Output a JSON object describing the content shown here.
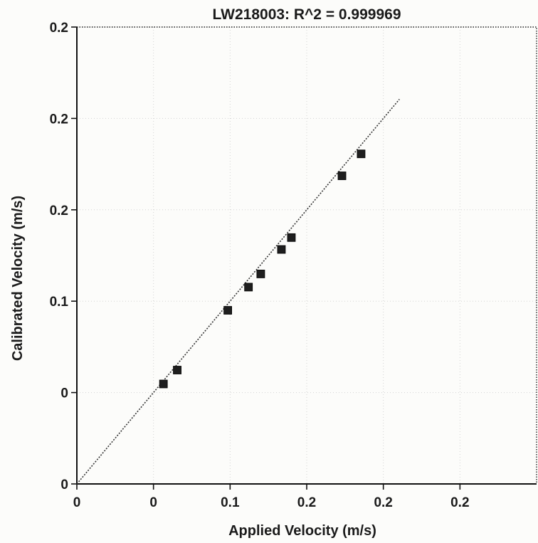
{
  "chart_data": {
    "type": "scatter",
    "title": "LW218003: R^2 = 0.999969",
    "xlabel": "Applied Velocity (m/s)",
    "ylabel": "Calibrated Velocity (m/s)",
    "xlim": [
      0,
      0.3
    ],
    "ylim": [
      0,
      0.25
    ],
    "x_ticks": [
      {
        "value": 0,
        "label": "0"
      },
      {
        "value": 0.05,
        "label": "0"
      },
      {
        "value": 0.1,
        "label": "0.1"
      },
      {
        "value": 0.15,
        "label": "0.2"
      },
      {
        "value": 0.2,
        "label": "0.2"
      },
      {
        "value": 0.25,
        "label": "0.2"
      }
    ],
    "y_ticks": [
      {
        "value": 0,
        "label": "0"
      },
      {
        "value": 0.05,
        "label": "0"
      },
      {
        "value": 0.1,
        "label": "0.1"
      },
      {
        "value": 0.15,
        "label": "0.2"
      },
      {
        "value": 0.2,
        "label": "0.2"
      },
      {
        "value": 0.25,
        "label": "0.2"
      }
    ],
    "grid": true,
    "legend": "none",
    "series": [
      {
        "marker": "square",
        "color": "#1e1e1e",
        "x": [
          0.0565,
          0.0655,
          0.0985,
          0.112,
          0.12,
          0.1335,
          0.14,
          0.173,
          0.1855
        ],
        "y": [
          0.0547,
          0.0623,
          0.095,
          0.1077,
          0.1149,
          0.1283,
          0.1348,
          0.1686,
          0.1806
        ]
      }
    ],
    "fit_line": {
      "style": "dotted",
      "color": "#333333",
      "x": [
        0,
        0.2105
      ],
      "y": [
        0,
        0.2105
      ]
    }
  }
}
